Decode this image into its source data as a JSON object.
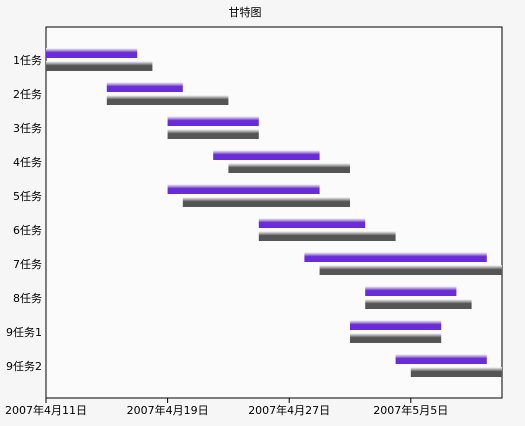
{
  "chart_data": {
    "type": "gantt",
    "title": "甘特图",
    "categories": [
      "1任务",
      "2任务",
      "3任务",
      "4任务",
      "5任务",
      "6任务",
      "7任务",
      "8任务",
      "9任务1",
      "9任务2"
    ],
    "series": [
      {
        "color": "#6a2bd8",
        "starts": [
          0,
          4,
          8,
          11,
          8,
          14,
          17,
          21,
          20,
          23
        ],
        "ends": [
          6,
          9,
          14,
          18,
          18,
          21,
          29,
          27,
          26,
          29
        ]
      },
      {
        "color": "#555555",
        "starts": [
          0,
          4,
          8,
          12,
          9,
          14,
          18,
          21,
          20,
          24
        ],
        "ends": [
          7,
          12,
          14,
          20,
          20,
          23,
          30,
          28,
          26,
          30
        ]
      }
    ],
    "xlim": [
      0,
      30
    ],
    "xticks": [
      {
        "value": 0,
        "label": "2007年4月11日"
      },
      {
        "value": 8,
        "label": "2007年4月19日"
      },
      {
        "value": 16,
        "label": "2007年4月27日"
      },
      {
        "value": 24,
        "label": "2007年5月5日"
      }
    ]
  }
}
